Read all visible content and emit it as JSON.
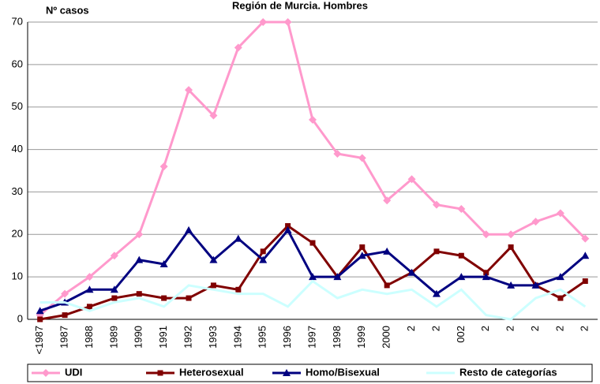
{
  "chart_data": {
    "type": "line",
    "title": "Región de Murcia. Hombres",
    "y_label": "Nº casos",
    "categories": [
      "<1987",
      "1987",
      "1988",
      "1989",
      "1990",
      "1991",
      "1992",
      "1993",
      "1994",
      "1995",
      "1996",
      "1997",
      "1998",
      "1999",
      "2000",
      "2",
      "2",
      "002",
      "2",
      "2",
      "2",
      "2",
      "2"
    ],
    "series": [
      {
        "name": "UDI",
        "color": "#ff99cc",
        "marker": "diamond",
        "values": [
          1,
          6,
          10,
          15,
          20,
          36,
          54,
          48,
          64,
          70,
          70,
          47,
          39,
          38,
          28,
          33,
          27,
          26,
          20,
          20,
          23,
          25,
          19
        ]
      },
      {
        "name": "Heterosexual",
        "color": "#800000",
        "marker": "square",
        "values": [
          0,
          1,
          3,
          5,
          6,
          5,
          5,
          8,
          7,
          16,
          22,
          18,
          10,
          17,
          8,
          11,
          16,
          15,
          11,
          17,
          8,
          5,
          9
        ]
      },
      {
        "name": "Homo/Bisexual",
        "color": "#000080",
        "marker": "triangle",
        "values": [
          2,
          4,
          7,
          7,
          14,
          13,
          21,
          14,
          19,
          14,
          21,
          10,
          10,
          15,
          16,
          11,
          6,
          10,
          10,
          8,
          8,
          10,
          15
        ]
      },
      {
        "name": "Resto de categorías",
        "color": "#ccffff",
        "marker": "none",
        "values": [
          4,
          4,
          2,
          4,
          5,
          3,
          8,
          7,
          6,
          6,
          3,
          9,
          5,
          7,
          6,
          7,
          3,
          7,
          1,
          0,
          5,
          7,
          3
        ]
      }
    ],
    "ylim": [
      0,
      70
    ],
    "yticks": [
      0,
      10,
      20,
      30,
      40,
      50,
      60,
      70
    ],
    "grid": true,
    "legend": "bottom"
  }
}
